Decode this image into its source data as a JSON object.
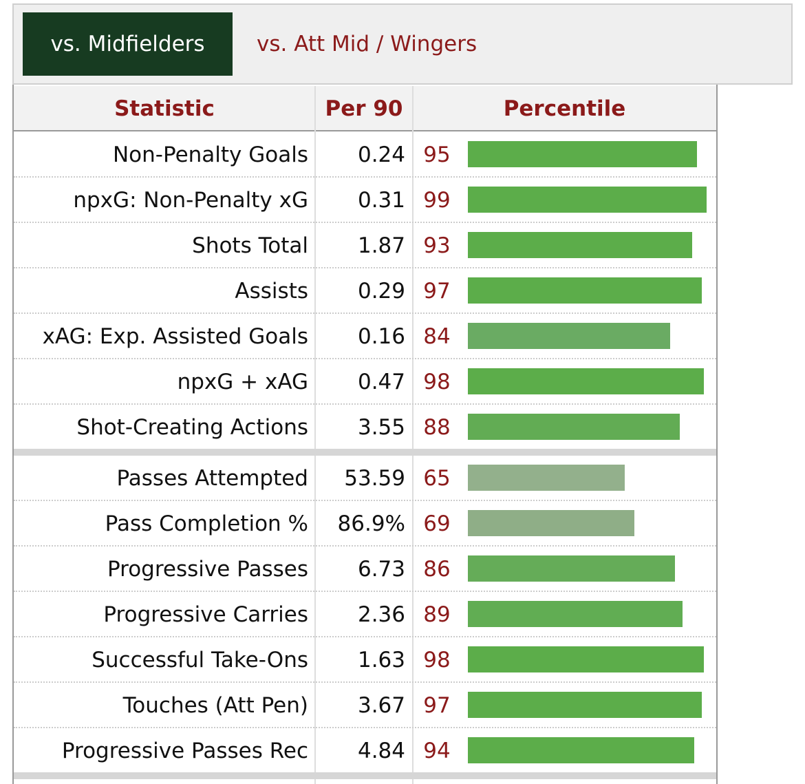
{
  "tabs": [
    {
      "label": "vs. Midfielders",
      "active": true
    },
    {
      "label": "vs. Att Mid / Wingers",
      "active": false
    }
  ],
  "table": {
    "headers": [
      "Statistic",
      "Per 90",
      "Percentile"
    ],
    "groups": [
      [
        {
          "statistic": "Non-Penalty Goals",
          "per90": "0.24",
          "percentile": 95,
          "color": "#5cad4a"
        },
        {
          "statistic": "npxG: Non-Penalty xG",
          "per90": "0.31",
          "percentile": 99,
          "color": "#5cad4a"
        },
        {
          "statistic": "Shots Total",
          "per90": "1.87",
          "percentile": 93,
          "color": "#5cad4a"
        },
        {
          "statistic": "Assists",
          "per90": "0.29",
          "percentile": 97,
          "color": "#5cad4a"
        },
        {
          "statistic": "xAG: Exp. Assisted Goals",
          "per90": "0.16",
          "percentile": 84,
          "color": "#6aab63"
        },
        {
          "statistic": "npxG + xAG",
          "per90": "0.47",
          "percentile": 98,
          "color": "#5cad4a"
        },
        {
          "statistic": "Shot-Creating Actions",
          "per90": "3.55",
          "percentile": 88,
          "color": "#62ac54"
        }
      ],
      [
        {
          "statistic": "Passes Attempted",
          "per90": "53.59",
          "percentile": 65,
          "color": "#93b08c"
        },
        {
          "statistic": "Pass Completion %",
          "per90": "86.9%",
          "percentile": 69,
          "color": "#8fae87"
        },
        {
          "statistic": "Progressive Passes",
          "per90": "6.73",
          "percentile": 86,
          "color": "#65ac58"
        },
        {
          "statistic": "Progressive Carries",
          "per90": "2.36",
          "percentile": 89,
          "color": "#61ad53"
        },
        {
          "statistic": "Successful Take-Ons",
          "per90": "1.63",
          "percentile": 98,
          "color": "#5cad4a"
        },
        {
          "statistic": "Touches (Att Pen)",
          "per90": "3.67",
          "percentile": 97,
          "color": "#5cad4a"
        },
        {
          "statistic": "Progressive Passes Rec",
          "per90": "4.84",
          "percentile": 94,
          "color": "#5cad4a"
        }
      ]
    ]
  }
}
